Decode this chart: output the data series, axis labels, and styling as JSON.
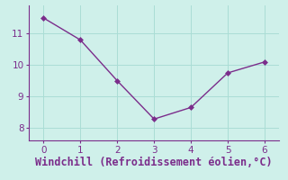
{
  "x": [
    0,
    1,
    2,
    3,
    4,
    5,
    6
  ],
  "y": [
    11.5,
    10.8,
    9.5,
    8.28,
    8.65,
    9.75,
    10.1
  ],
  "line_color": "#7b2d8b",
  "marker_color": "#7b2d8b",
  "bg_color": "#cff0ea",
  "grid_color": "#aaddd5",
  "axis_color": "#7b2d8b",
  "tick_color": "#7b2d8b",
  "xlabel": "Windchill (Refroidissement éolien,°C)",
  "xlabel_color": "#7b2d8b",
  "xlim": [
    -0.4,
    6.4
  ],
  "ylim": [
    7.6,
    11.9
  ],
  "yticks": [
    8,
    9,
    10,
    11
  ],
  "xticks": [
    0,
    1,
    2,
    3,
    4,
    5,
    6
  ],
  "xlabel_fontsize": 8.5,
  "tick_fontsize": 7.5,
  "marker_size": 3,
  "line_width": 1.0
}
